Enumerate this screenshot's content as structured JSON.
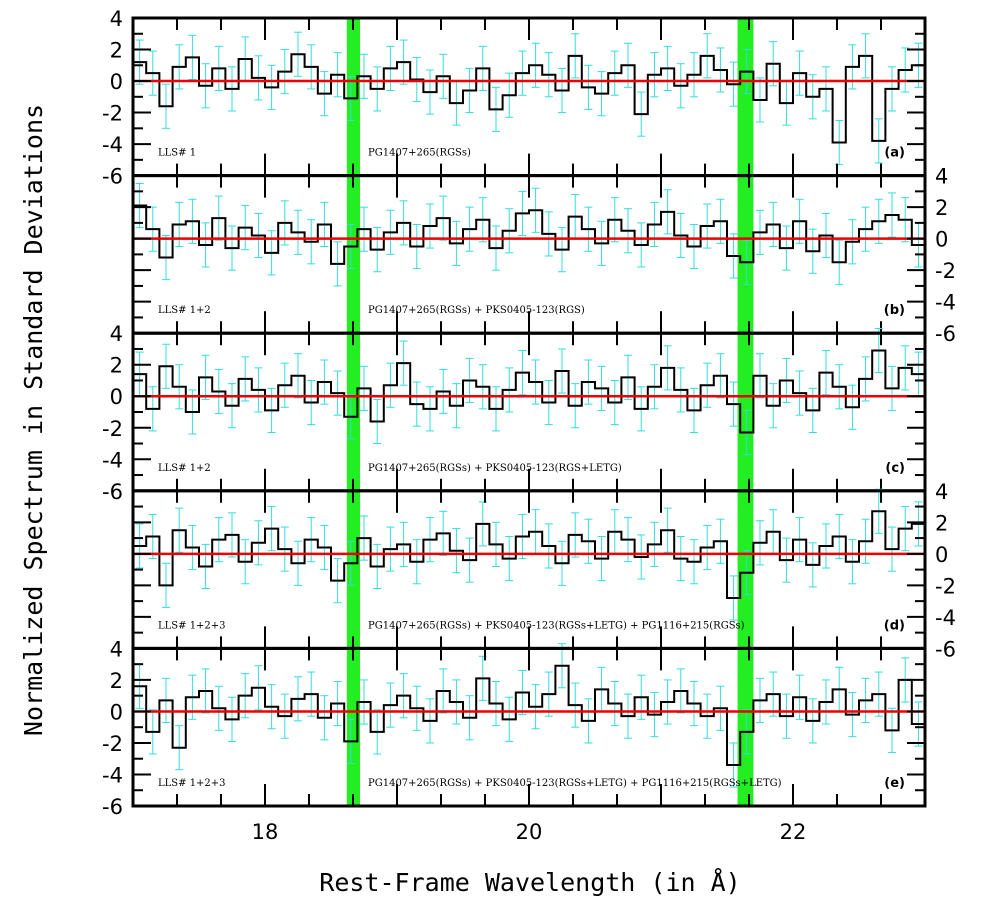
{
  "chart_data": {
    "type": "line",
    "xlabel": "Rest-Frame Wavelength (in Å)",
    "ylabel": "Normalized Spectrum in Standard Deviations",
    "xlim": [
      17,
      23
    ],
    "ylim": [
      -6,
      4
    ],
    "x_ticks": [
      "18",
      "20",
      "22"
    ],
    "y_ticks": [
      "4",
      "2",
      "0",
      "-2",
      "-4",
      "-6"
    ],
    "highlight_bands": [
      [
        18.62,
        18.72
      ],
      [
        21.58,
        21.7
      ]
    ],
    "x_start": 17.0,
    "bin_width": 0.1,
    "error": 1.0,
    "colors": {
      "spectrum": "#000000",
      "errors": "#33dddd",
      "model": "#ee0000",
      "band": "#22ee22"
    },
    "panels": [
      {
        "tag": "(a)",
        "lls": "LLS# 1",
        "source": "PG1407+265(RGSs)",
        "axis_side": "left",
        "values": [
          1.2,
          0.5,
          -1.6,
          0.9,
          1.5,
          -0.3,
          0.8,
          -0.5,
          1.4,
          0.2,
          -0.4,
          0.6,
          1.7,
          0.9,
          -0.8,
          0.4,
          -1.1,
          0.3,
          -0.5,
          0.8,
          1.2,
          0.1,
          -0.7,
          0.3,
          -1.4,
          -0.6,
          0.8,
          -1.8,
          -0.9,
          0.5,
          1.0,
          0.4,
          -0.6,
          1.6,
          -0.4,
          -0.8,
          0.5,
          1.0,
          -2.1,
          0.4,
          0.8,
          -0.3,
          0.4,
          1.6,
          0.7,
          -0.2,
          0.6,
          -1.2,
          1.1,
          -1.4,
          0.5,
          -1.0,
          -0.5,
          -3.9,
          0.9,
          1.6,
          -3.8,
          -0.5,
          0.7,
          1.0
        ]
      },
      {
        "tag": "(b)",
        "lls": "LLS# 1+2",
        "source": "PG1407+265(RGSs) + PKS0405-123(RGS)",
        "axis_side": "right",
        "values": [
          2.1,
          0.6,
          -1.2,
          0.9,
          1.1,
          -0.4,
          1.3,
          -0.6,
          0.7,
          0.2,
          -0.9,
          1.0,
          0.4,
          -0.2,
          0.9,
          -1.6,
          -0.5,
          0.6,
          -0.7,
          0.4,
          1.0,
          -0.5,
          0.8,
          1.3,
          -0.3,
          0.6,
          1.2,
          -0.6,
          0.5,
          1.6,
          1.8,
          0.3,
          -0.7,
          1.4,
          0.6,
          -0.3,
          1.2,
          0.5,
          -0.4,
          0.9,
          1.7,
          0.2,
          -0.5,
          0.8,
          1.1,
          -1.1,
          -1.5,
          0.4,
          0.9,
          -0.6,
          1.1,
          -0.8,
          0.2,
          -1.5,
          -0.2,
          0.6,
          1.1,
          1.5,
          1.2,
          -0.4
        ]
      },
      {
        "tag": "(c)",
        "lls": "LLS# 1+2",
        "source": "PG1407+265(RGSs) + PKS0405-123(RGS+LETG)",
        "axis_side": "left",
        "values": [
          1.4,
          -0.8,
          1.9,
          0.6,
          -1.0,
          1.2,
          0.3,
          -0.6,
          1.1,
          0.4,
          -0.9,
          0.7,
          1.3,
          -0.4,
          0.9,
          0.2,
          -1.3,
          0.5,
          -1.6,
          0.7,
          2.1,
          -0.5,
          -0.8,
          0.3,
          -0.6,
          1.0,
          0.6,
          -0.8,
          0.4,
          1.5,
          0.9,
          -0.4,
          1.6,
          -0.6,
          0.9,
          0.5,
          -0.4,
          1.2,
          -0.8,
          0.6,
          1.8,
          0.4,
          -0.9,
          0.7,
          1.3,
          -0.5,
          -2.3,
          1.3,
          -0.6,
          1.0,
          0.2,
          -0.9,
          1.5,
          0.6,
          -0.7,
          1.1,
          2.9,
          0.5,
          1.8,
          1.4
        ]
      },
      {
        "tag": "(d)",
        "lls": "LLS# 1+2+3",
        "source": "PG1407+265(RGSs) + PKS0405-123(RGSs+LETG) + PG1116+215(RGSs)",
        "axis_side": "right",
        "values": [
          0.5,
          1.1,
          -2.0,
          1.5,
          0.4,
          -0.8,
          0.9,
          1.2,
          -0.5,
          0.7,
          1.6,
          0.3,
          -0.6,
          0.9,
          0.4,
          -1.7,
          -0.6,
          1.0,
          -0.8,
          0.3,
          0.6,
          -0.5,
          0.9,
          1.3,
          0.2,
          -0.4,
          1.9,
          0.6,
          -0.3,
          1.1,
          1.4,
          0.5,
          -0.6,
          1.2,
          0.8,
          -0.3,
          1.4,
          0.9,
          -0.2,
          0.6,
          1.5,
          -0.3,
          -0.5,
          0.4,
          0.8,
          -2.8,
          -1.2,
          0.7,
          1.4,
          -0.4,
          0.9,
          -0.7,
          0.5,
          1.1,
          -0.5,
          0.8,
          2.7,
          0.3,
          1.6,
          1.9
        ]
      },
      {
        "tag": "(e)",
        "lls": "LLS# 1+2+3",
        "source": "PG1407+265(RGSs) + PKS0405-123(RGSs+LETG) + PG1116+215(RGSs+LETG)",
        "axis_side": "left",
        "values": [
          1.6,
          -1.3,
          0.7,
          -2.3,
          0.9,
          1.3,
          0.2,
          -0.5,
          1.0,
          1.5,
          0.3,
          -0.3,
          0.8,
          1.1,
          -0.4,
          0.5,
          -1.9,
          0.6,
          -1.3,
          0.4,
          1.0,
          0.2,
          -0.6,
          1.3,
          0.6,
          -0.4,
          2.1,
          0.5,
          -0.5,
          1.2,
          0.3,
          1.1,
          2.9,
          0.4,
          -0.6,
          1.4,
          0.5,
          -0.3,
          0.9,
          -0.2,
          0.6,
          1.3,
          0.5,
          -0.3,
          0.2,
          -3.4,
          -1.3,
          0.7,
          1.1,
          -0.3,
          0.9,
          -0.6,
          0.6,
          1.4,
          -0.2,
          0.7,
          1.1,
          -1.2,
          2.0,
          -0.8
        ]
      }
    ]
  }
}
